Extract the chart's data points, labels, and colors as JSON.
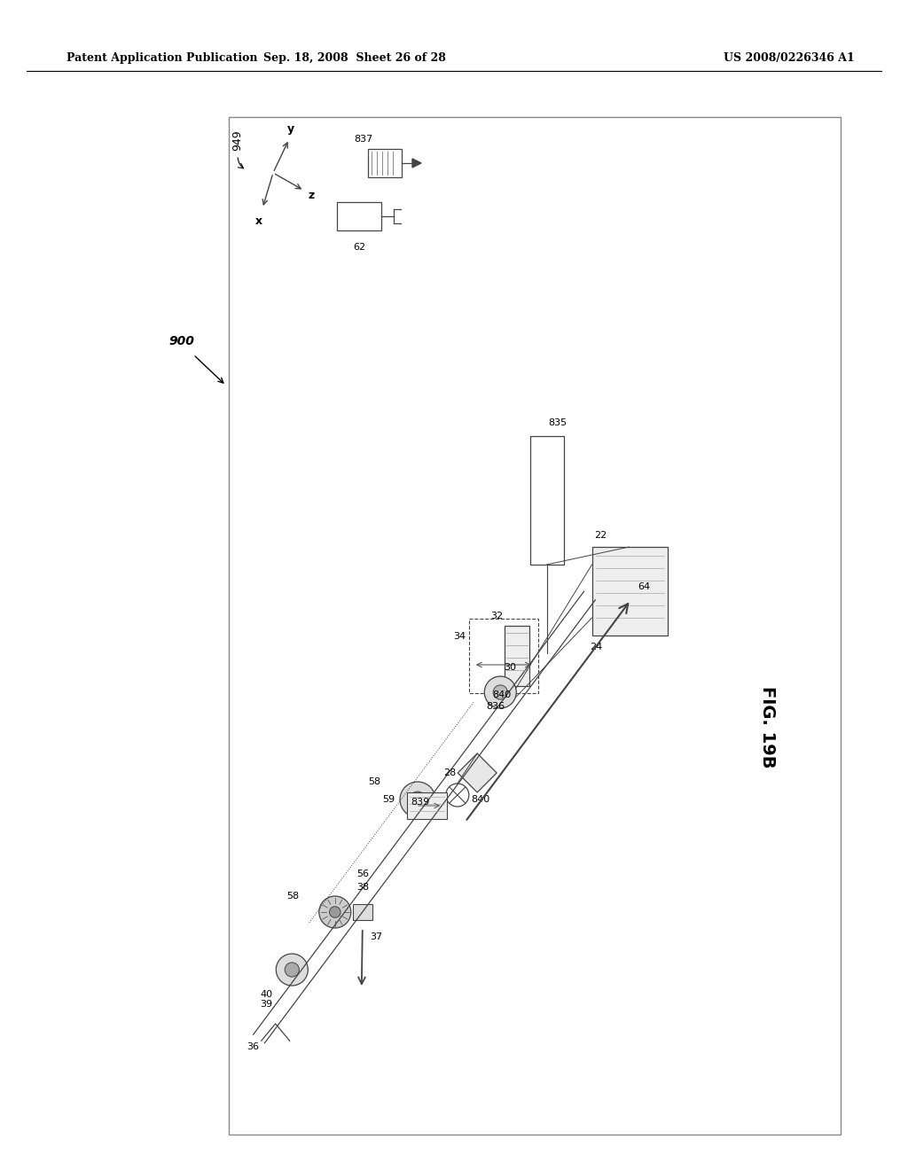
{
  "header_left": "Patent Application Publication",
  "header_center": "Sep. 18, 2008  Sheet 26 of 28",
  "header_right": "US 2008/0226346 A1",
  "fig_label": "FIG. 19B",
  "bg_color": "#ffffff",
  "line_color": "#444444",
  "border_color": "#aaaaaa"
}
